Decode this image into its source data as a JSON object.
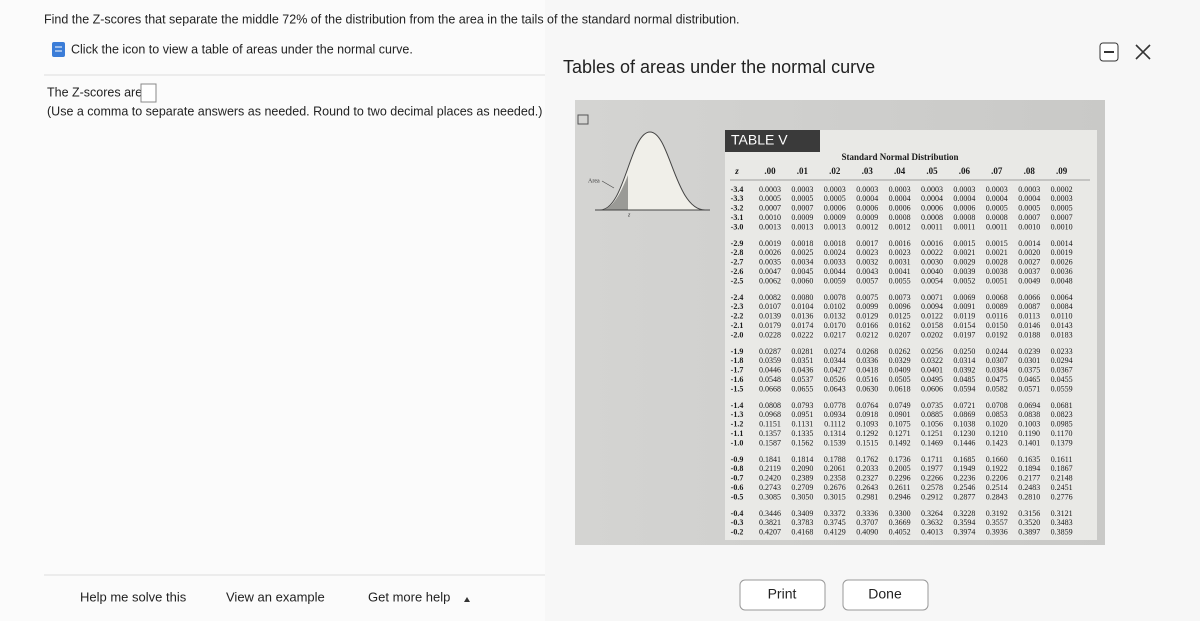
{
  "question": "Find the Z-scores that separate the middle 72% of the distribution from the area in the tails of the standard normal distribution.",
  "icon_link": "Click the icon to view a table of areas under the normal curve.",
  "answer_label": "The Z-scores are",
  "instructions": "(Use a comma to separate answers as needed. Round to two decimal places as needed.)",
  "modal": {
    "title": "Tables of areas under the normal curve",
    "table_label": "TABLE V",
    "subtitle": "Standard Normal Distribution",
    "figure_labels": [
      "Area",
      "z"
    ],
    "columns": [
      "z",
      ".00",
      ".01",
      ".02",
      ".03",
      ".04",
      ".05",
      ".06",
      ".07",
      ".08",
      ".09"
    ],
    "rows": [
      [
        "-3.4",
        "0.0003",
        "0.0003",
        "0.0003",
        "0.0003",
        "0.0003",
        "0.0003",
        "0.0003",
        "0.0003",
        "0.0003",
        "0.0002"
      ],
      [
        "-3.3",
        "0.0005",
        "0.0005",
        "0.0005",
        "0.0004",
        "0.0004",
        "0.0004",
        "0.0004",
        "0.0004",
        "0.0004",
        "0.0003"
      ],
      [
        "-3.2",
        "0.0007",
        "0.0007",
        "0.0006",
        "0.0006",
        "0.0006",
        "0.0006",
        "0.0006",
        "0.0005",
        "0.0005",
        "0.0005"
      ],
      [
        "-3.1",
        "0.0010",
        "0.0009",
        "0.0009",
        "0.0009",
        "0.0008",
        "0.0008",
        "0.0008",
        "0.0008",
        "0.0007",
        "0.0007"
      ],
      [
        "-3.0",
        "0.0013",
        "0.0013",
        "0.0013",
        "0.0012",
        "0.0012",
        "0.0011",
        "0.0011",
        "0.0011",
        "0.0010",
        "0.0010"
      ],
      [
        "-2.9",
        "0.0019",
        "0.0018",
        "0.0018",
        "0.0017",
        "0.0016",
        "0.0016",
        "0.0015",
        "0.0015",
        "0.0014",
        "0.0014"
      ],
      [
        "-2.8",
        "0.0026",
        "0.0025",
        "0.0024",
        "0.0023",
        "0.0023",
        "0.0022",
        "0.0021",
        "0.0021",
        "0.0020",
        "0.0019"
      ],
      [
        "-2.7",
        "0.0035",
        "0.0034",
        "0.0033",
        "0.0032",
        "0.0031",
        "0.0030",
        "0.0029",
        "0.0028",
        "0.0027",
        "0.0026"
      ],
      [
        "-2.6",
        "0.0047",
        "0.0045",
        "0.0044",
        "0.0043",
        "0.0041",
        "0.0040",
        "0.0039",
        "0.0038",
        "0.0037",
        "0.0036"
      ],
      [
        "-2.5",
        "0.0062",
        "0.0060",
        "0.0059",
        "0.0057",
        "0.0055",
        "0.0054",
        "0.0052",
        "0.0051",
        "0.0049",
        "0.0048"
      ],
      [
        "-2.4",
        "0.0082",
        "0.0080",
        "0.0078",
        "0.0075",
        "0.0073",
        "0.0071",
        "0.0069",
        "0.0068",
        "0.0066",
        "0.0064"
      ],
      [
        "-2.3",
        "0.0107",
        "0.0104",
        "0.0102",
        "0.0099",
        "0.0096",
        "0.0094",
        "0.0091",
        "0.0089",
        "0.0087",
        "0.0084"
      ],
      [
        "-2.2",
        "0.0139",
        "0.0136",
        "0.0132",
        "0.0129",
        "0.0125",
        "0.0122",
        "0.0119",
        "0.0116",
        "0.0113",
        "0.0110"
      ],
      [
        "-2.1",
        "0.0179",
        "0.0174",
        "0.0170",
        "0.0166",
        "0.0162",
        "0.0158",
        "0.0154",
        "0.0150",
        "0.0146",
        "0.0143"
      ],
      [
        "-2.0",
        "0.0228",
        "0.0222",
        "0.0217",
        "0.0212",
        "0.0207",
        "0.0202",
        "0.0197",
        "0.0192",
        "0.0188",
        "0.0183"
      ],
      [
        "-1.9",
        "0.0287",
        "0.0281",
        "0.0274",
        "0.0268",
        "0.0262",
        "0.0256",
        "0.0250",
        "0.0244",
        "0.0239",
        "0.0233"
      ],
      [
        "-1.8",
        "0.0359",
        "0.0351",
        "0.0344",
        "0.0336",
        "0.0329",
        "0.0322",
        "0.0314",
        "0.0307",
        "0.0301",
        "0.0294"
      ],
      [
        "-1.7",
        "0.0446",
        "0.0436",
        "0.0427",
        "0.0418",
        "0.0409",
        "0.0401",
        "0.0392",
        "0.0384",
        "0.0375",
        "0.0367"
      ],
      [
        "-1.6",
        "0.0548",
        "0.0537",
        "0.0526",
        "0.0516",
        "0.0505",
        "0.0495",
        "0.0485",
        "0.0475",
        "0.0465",
        "0.0455"
      ],
      [
        "-1.5",
        "0.0668",
        "0.0655",
        "0.0643",
        "0.0630",
        "0.0618",
        "0.0606",
        "0.0594",
        "0.0582",
        "0.0571",
        "0.0559"
      ],
      [
        "-1.4",
        "0.0808",
        "0.0793",
        "0.0778",
        "0.0764",
        "0.0749",
        "0.0735",
        "0.0721",
        "0.0708",
        "0.0694",
        "0.0681"
      ],
      [
        "-1.3",
        "0.0968",
        "0.0951",
        "0.0934",
        "0.0918",
        "0.0901",
        "0.0885",
        "0.0869",
        "0.0853",
        "0.0838",
        "0.0823"
      ],
      [
        "-1.2",
        "0.1151",
        "0.1131",
        "0.1112",
        "0.1093",
        "0.1075",
        "0.1056",
        "0.1038",
        "0.1020",
        "0.1003",
        "0.0985"
      ],
      [
        "-1.1",
        "0.1357",
        "0.1335",
        "0.1314",
        "0.1292",
        "0.1271",
        "0.1251",
        "0.1230",
        "0.1210",
        "0.1190",
        "0.1170"
      ],
      [
        "-1.0",
        "0.1587",
        "0.1562",
        "0.1539",
        "0.1515",
        "0.1492",
        "0.1469",
        "0.1446",
        "0.1423",
        "0.1401",
        "0.1379"
      ],
      [
        "-0.9",
        "0.1841",
        "0.1814",
        "0.1788",
        "0.1762",
        "0.1736",
        "0.1711",
        "0.1685",
        "0.1660",
        "0.1635",
        "0.1611"
      ],
      [
        "-0.8",
        "0.2119",
        "0.2090",
        "0.2061",
        "0.2033",
        "0.2005",
        "0.1977",
        "0.1949",
        "0.1922",
        "0.1894",
        "0.1867"
      ],
      [
        "-0.7",
        "0.2420",
        "0.2389",
        "0.2358",
        "0.2327",
        "0.2296",
        "0.2266",
        "0.2236",
        "0.2206",
        "0.2177",
        "0.2148"
      ],
      [
        "-0.6",
        "0.2743",
        "0.2709",
        "0.2676",
        "0.2643",
        "0.2611",
        "0.2578",
        "0.2546",
        "0.2514",
        "0.2483",
        "0.2451"
      ],
      [
        "-0.5",
        "0.3085",
        "0.3050",
        "0.3015",
        "0.2981",
        "0.2946",
        "0.2912",
        "0.2877",
        "0.2843",
        "0.2810",
        "0.2776"
      ],
      [
        "-0.4",
        "0.3446",
        "0.3409",
        "0.3372",
        "0.3336",
        "0.3300",
        "0.3264",
        "0.3228",
        "0.3192",
        "0.3156",
        "0.3121"
      ],
      [
        "-0.3",
        "0.3821",
        "0.3783",
        "0.3745",
        "0.3707",
        "0.3669",
        "0.3632",
        "0.3594",
        "0.3557",
        "0.3520",
        "0.3483"
      ],
      [
        "-0.2",
        "0.4207",
        "0.4168",
        "0.4129",
        "0.4090",
        "0.4052",
        "0.4013",
        "0.3974",
        "0.3936",
        "0.3897",
        "0.3859"
      ]
    ],
    "buttons": [
      "Print",
      "Done"
    ]
  },
  "footer": [
    "Help me solve this",
    "View an example",
    "Get more help"
  ]
}
